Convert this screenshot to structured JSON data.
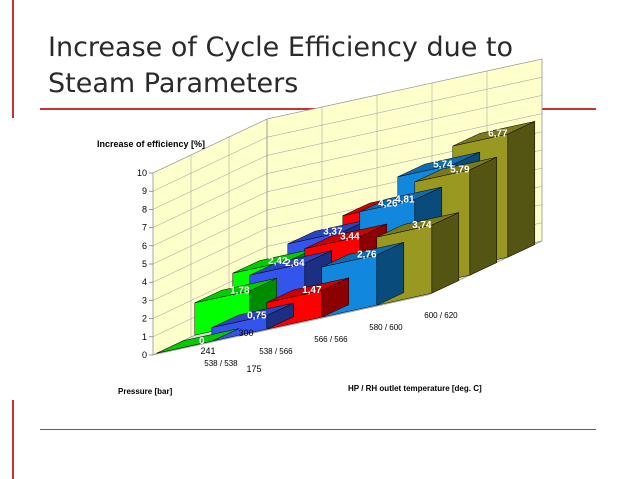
{
  "slide": {
    "title_line1": "Increase of Cycle Efficiency due to",
    "title_line2": "Steam Parameters",
    "accent_color": "#c83232"
  },
  "chart_data": {
    "type": "bar",
    "variant": "3d-grouped-steps",
    "ylabel": "Increase of efficiency  [%]",
    "xlabel": "HP / RH outlet temperature  [deg. C]",
    "zlabel": "Pressure  [bar]",
    "ylim": [
      0,
      10
    ],
    "yticks": [
      "0",
      "1",
      "2",
      "3",
      "4",
      "5",
      "6",
      "7",
      "8",
      "9",
      "10"
    ],
    "grid": true,
    "legend": "none",
    "categories": [
      "538 / 538",
      "538 / 566",
      "566 / 566",
      "580 / 600",
      "600 / 620"
    ],
    "pressures": [
      "175",
      "241",
      "300"
    ],
    "series": [
      {
        "pressure": "175",
        "values": [
          0,
          0.75,
          1.47,
          2.76,
          3.74
        ]
      },
      {
        "pressure": "241",
        "values": [
          1.78,
          2.64,
          3.44,
          4.81,
          5.79
        ]
      },
      {
        "pressure": "300",
        "values": [
          2.42,
          3.37,
          4.26,
          5.74,
          6.77
        ]
      }
    ],
    "value_labels": [
      [
        "0",
        "0,75",
        "1,47",
        "2,76",
        "3,74"
      ],
      [
        "1,78",
        "2,64",
        "3,44",
        "4,81",
        "5,79"
      ],
      [
        "2,42",
        "3,37",
        "4,26",
        "5,74",
        "6,77"
      ]
    ],
    "colors": [
      "#00ff00",
      "#3355ee",
      "#ff0000",
      "#1188dd",
      "#999922"
    ]
  }
}
